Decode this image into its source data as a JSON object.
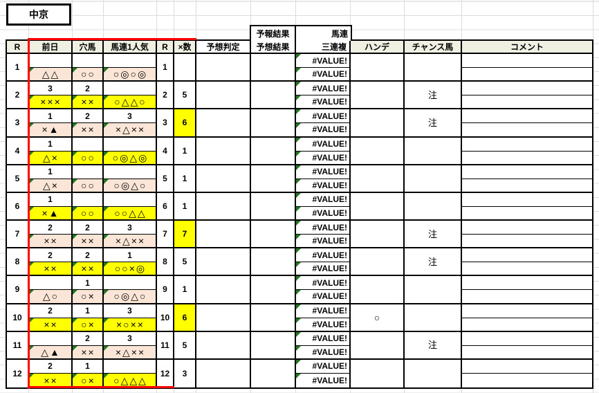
{
  "title": "中京",
  "error_text": "#VALUE!",
  "colors": {
    "header_bg": "#f0f0e2",
    "fill_pink": "#fbe5d6",
    "fill_yellow": "#ffff00",
    "error_indicator": "#1f7a1f",
    "highlight_border": "#ff0000"
  },
  "header": {
    "r": "R",
    "zenjitsu": "前日",
    "anauma": "穴馬",
    "baren_ninki": "馬連1人気",
    "r2": "R",
    "x_count": "×数",
    "yoso_hantei": "予想判定",
    "yoho_kekka": "予報結果",
    "yoso_kekka": "予想結果",
    "baren": "馬連",
    "sanrenpuku": "三連複",
    "hande": "ハンデ",
    "chance_uma": "チャンス馬",
    "comment": "コメント"
  },
  "rows": [
    {
      "r": "1",
      "fill": "pink",
      "zen_n": "",
      "zen_s": "△△",
      "ana_n": "",
      "ana_s": "○○",
      "bar_n": "",
      "bar_s": "○◎○◎",
      "x": "",
      "x_hl": false,
      "hande": "",
      "chance": ""
    },
    {
      "r": "2",
      "fill": "yellow",
      "zen_n": "3",
      "zen_s": "×××",
      "ana_n": "2",
      "ana_s": "××",
      "bar_n": "",
      "bar_s": "○△△○",
      "x": "5",
      "x_hl": false,
      "hande": "",
      "chance": "注"
    },
    {
      "r": "3",
      "fill": "pink",
      "zen_n": "1",
      "zen_s": "×▲",
      "ana_n": "2",
      "ana_s": "××",
      "bar_n": "3",
      "bar_s": "×△××",
      "x": "6",
      "x_hl": true,
      "hande": "",
      "chance": "注"
    },
    {
      "r": "4",
      "fill": "yellow",
      "zen_n": "1",
      "zen_s": "△×",
      "ana_n": "",
      "ana_s": "○○",
      "bar_n": "",
      "bar_s": "○◎△◎",
      "x": "1",
      "x_hl": false,
      "hande": "",
      "chance": ""
    },
    {
      "r": "5",
      "fill": "pink",
      "zen_n": "1",
      "zen_s": "△×",
      "ana_n": "",
      "ana_s": "○○",
      "bar_n": "",
      "bar_s": "○◎△○",
      "x": "1",
      "x_hl": false,
      "hande": "",
      "chance": ""
    },
    {
      "r": "6",
      "fill": "yellow",
      "zen_n": "1",
      "zen_s": "×▲",
      "ana_n": "",
      "ana_s": "○○",
      "bar_n": "",
      "bar_s": "○○△△",
      "x": "1",
      "x_hl": false,
      "hande": "",
      "chance": ""
    },
    {
      "r": "7",
      "fill": "pink",
      "zen_n": "2",
      "zen_s": "××",
      "ana_n": "2",
      "ana_s": "××",
      "bar_n": "3",
      "bar_s": "×△××",
      "x": "7",
      "x_hl": true,
      "hande": "",
      "chance": "注"
    },
    {
      "r": "8",
      "fill": "yellow",
      "zen_n": "2",
      "zen_s": "××",
      "ana_n": "2",
      "ana_s": "××",
      "bar_n": "1",
      "bar_s": "○○×◎",
      "x": "5",
      "x_hl": false,
      "hande": "",
      "chance": "注"
    },
    {
      "r": "9",
      "fill": "pink",
      "zen_n": "",
      "zen_s": "△○",
      "ana_n": "1",
      "ana_s": "○×",
      "bar_n": "",
      "bar_s": "○◎△○",
      "x": "1",
      "x_hl": false,
      "hande": "",
      "chance": ""
    },
    {
      "r": "10",
      "fill": "yellow",
      "zen_n": "2",
      "zen_s": "××",
      "ana_n": "1",
      "ana_s": "○×",
      "bar_n": "3",
      "bar_s": "×○××",
      "x": "6",
      "x_hl": true,
      "hande": "○",
      "chance": ""
    },
    {
      "r": "11",
      "fill": "pink",
      "zen_n": "",
      "zen_s": "△▲",
      "ana_n": "2",
      "ana_s": "××",
      "bar_n": "3",
      "bar_s": "×△××",
      "x": "5",
      "x_hl": false,
      "hande": "",
      "chance": "注"
    },
    {
      "r": "12",
      "fill": "yellow",
      "zen_n": "2",
      "zen_s": "××",
      "ana_n": "1",
      "ana_s": "○×",
      "bar_n": "",
      "bar_s": "○△△△",
      "x": "3",
      "x_hl": false,
      "hande": "",
      "chance": ""
    }
  ]
}
